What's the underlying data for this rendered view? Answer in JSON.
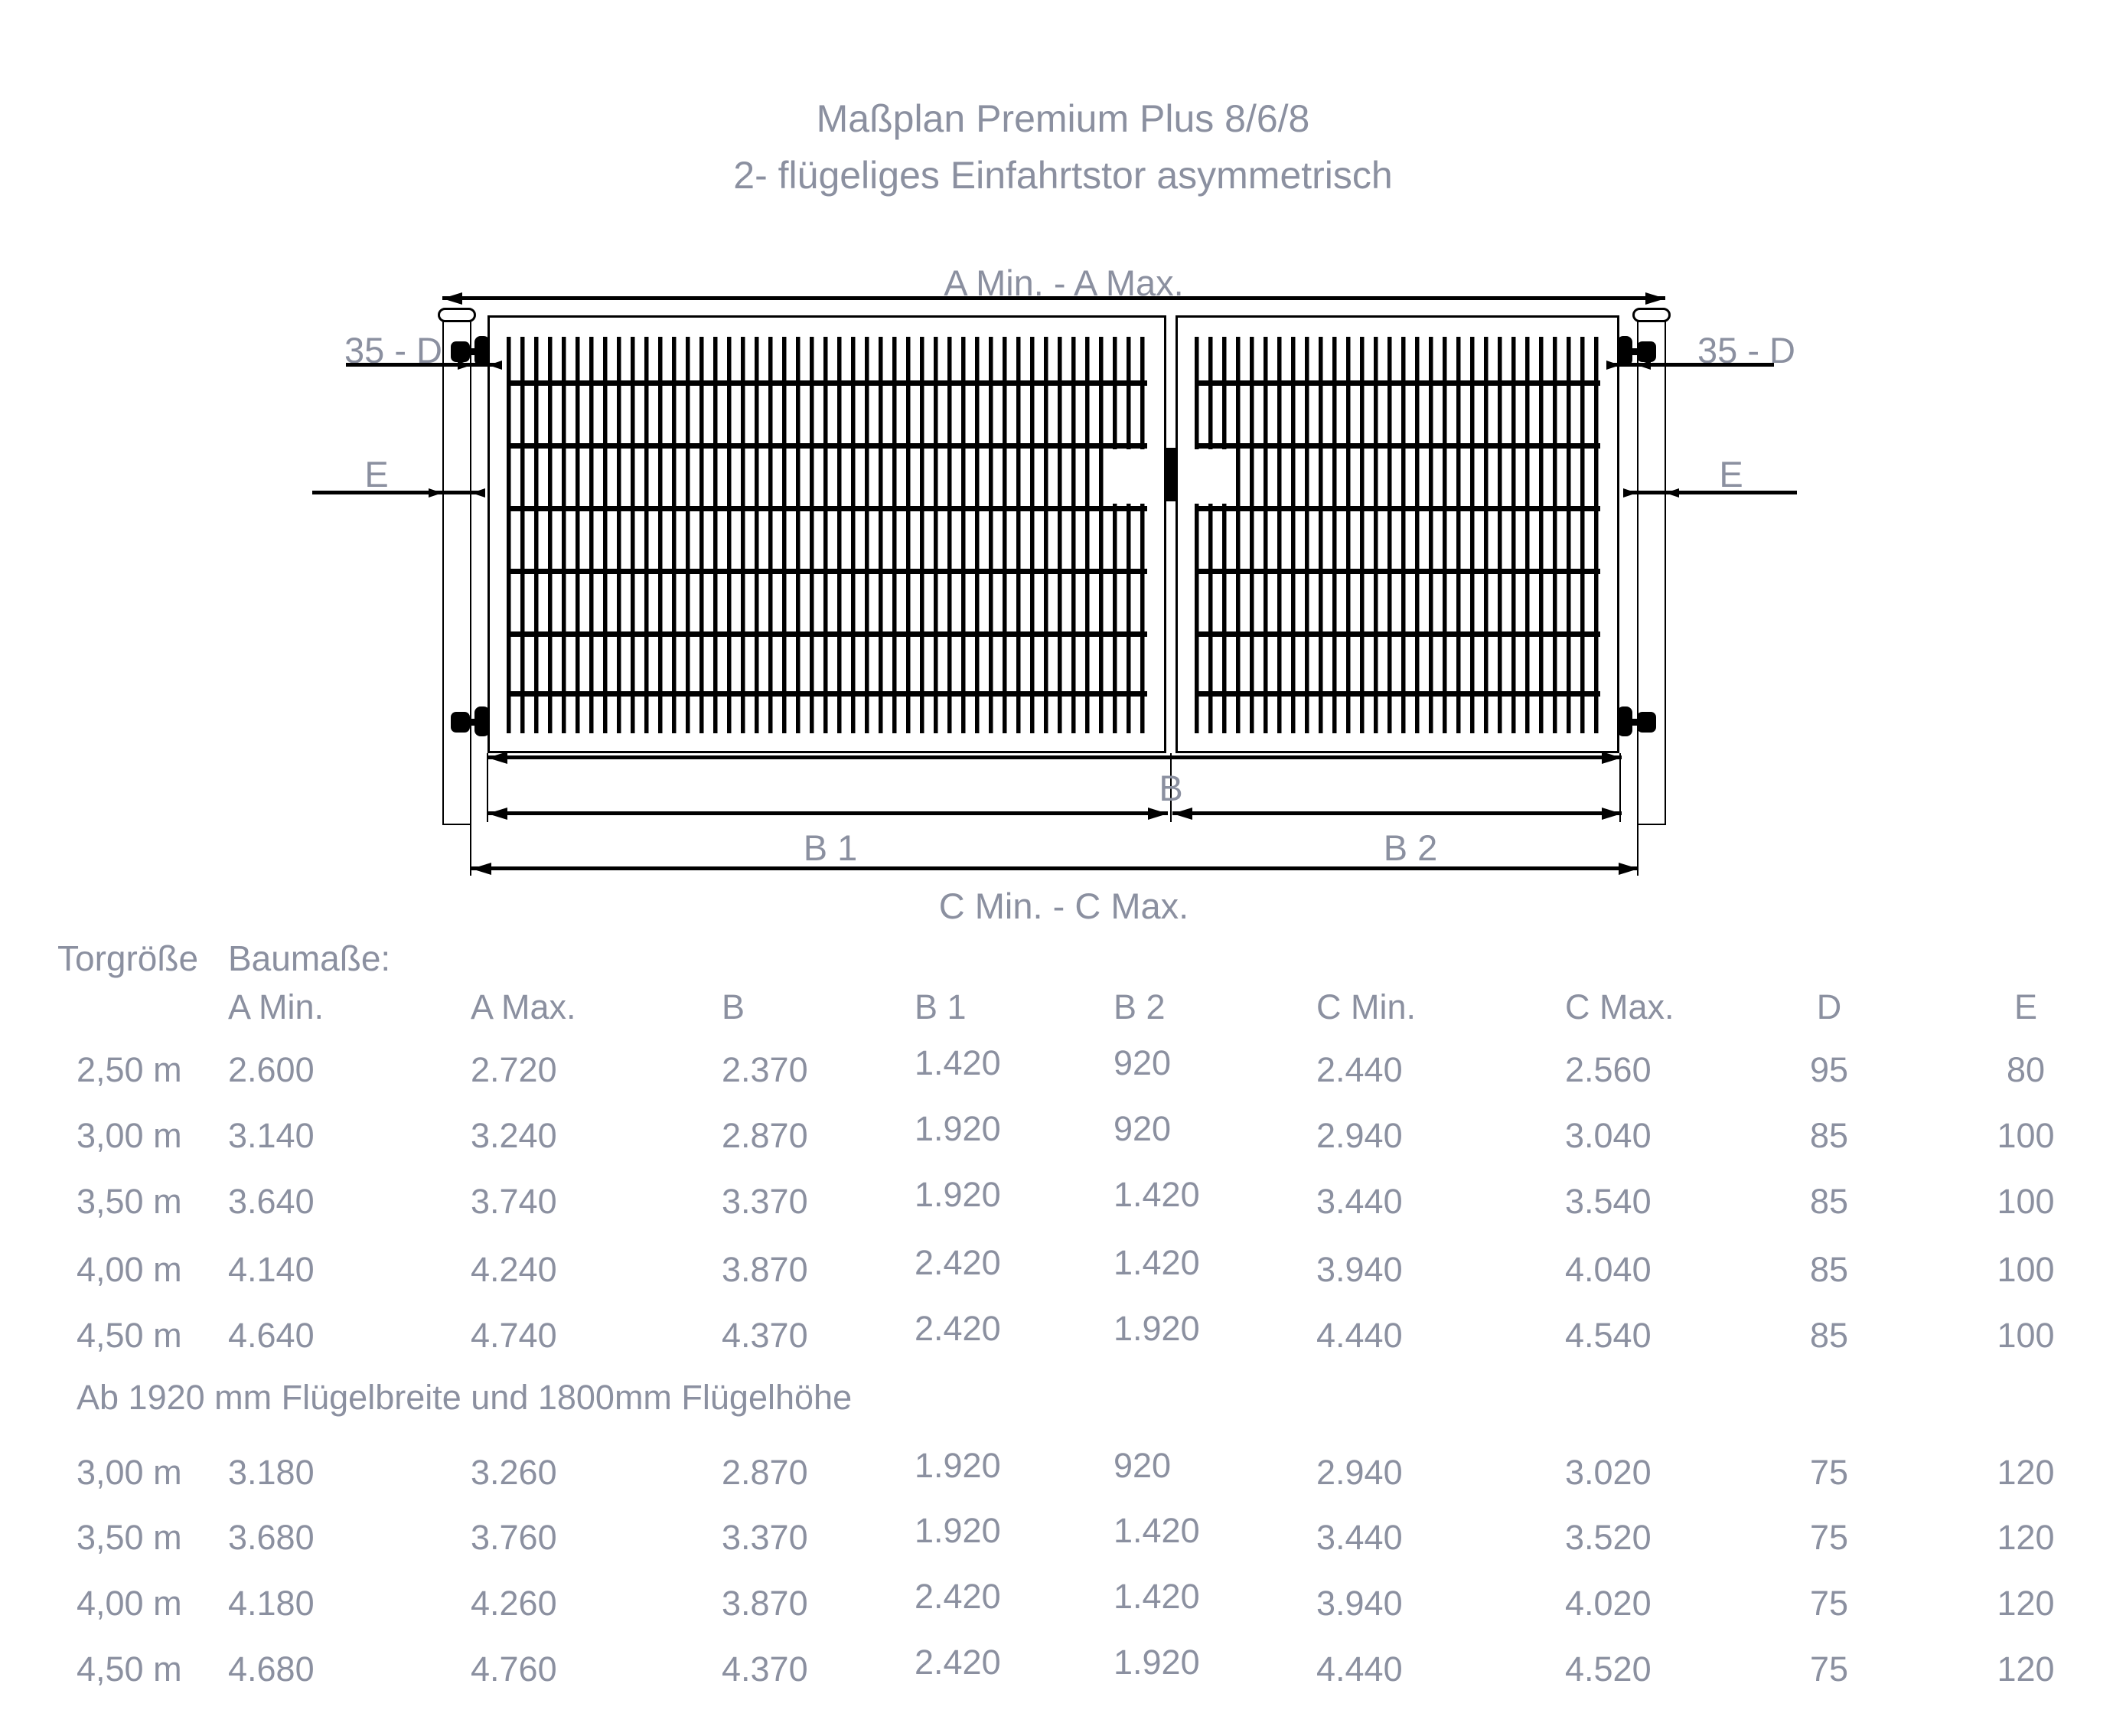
{
  "title": {
    "line1": "Maßplan Premium Plus 8/6/8",
    "line2": "2- flügeliges Einfahrtstor asymmetrisch"
  },
  "diagram": {
    "labels": {
      "a": "A Min. - A Max.",
      "d_left": "35 - D",
      "d_right": "35 - D",
      "e_left": "E",
      "e_right": "E",
      "b": "B",
      "b1": "B 1",
      "b2": "B 2",
      "c": "C Min. - C Max."
    }
  },
  "table": {
    "group_header": {
      "left": "Torgröße",
      "right": "Baumaße:"
    },
    "columns": [
      "A Min.",
      "A Max.",
      "B",
      "B 1",
      "B 2",
      "C Min.",
      "C Max.",
      "D",
      "E"
    ],
    "section1_rows": [
      {
        "size": "2,50 m",
        "values": [
          "2.600",
          "2.720",
          "2.370",
          "1.420",
          "920",
          "2.440",
          "2.560",
          "95",
          "80"
        ]
      },
      {
        "size": "3,00 m",
        "values": [
          "3.140",
          "3.240",
          "2.870",
          "1.920",
          "920",
          "2.940",
          "3.040",
          "85",
          "100"
        ]
      },
      {
        "size": "3,50 m",
        "values": [
          "3.640",
          "3.740",
          "3.370",
          "1.920",
          "1.420",
          "3.440",
          "3.540",
          "85",
          "100"
        ]
      },
      {
        "size": "4,00 m",
        "values": [
          "4.140",
          "4.240",
          "3.870",
          "2.420",
          "1.420",
          "3.940",
          "4.040",
          "85",
          "100"
        ]
      },
      {
        "size": "4,50 m",
        "values": [
          "4.640",
          "4.740",
          "4.370",
          "2.420",
          "1.920",
          "4.440",
          "4.540",
          "85",
          "100"
        ]
      }
    ],
    "note": "Ab 1920 mm Flügelbreite und 1800mm Flügelhöhe",
    "section2_rows": [
      {
        "size": "3,00 m",
        "values": [
          "3.180",
          "3.260",
          "2.870",
          "1.920",
          "920",
          "2.940",
          "3.020",
          "75",
          "120"
        ]
      },
      {
        "size": "3,50 m",
        "values": [
          "3.680",
          "3.760",
          "3.370",
          "1.920",
          "1.420",
          "3.440",
          "3.520",
          "75",
          "120"
        ]
      },
      {
        "size": "4,00 m",
        "values": [
          "4.180",
          "4.260",
          "3.870",
          "2.420",
          "1.420",
          "3.940",
          "4.020",
          "75",
          "120"
        ]
      },
      {
        "size": "4,50 m",
        "values": [
          "4.680",
          "4.760",
          "4.370",
          "2.420",
          "1.920",
          "4.440",
          "4.520",
          "75",
          "120"
        ]
      }
    ]
  },
  "colors": {
    "text": "#8b90a0",
    "line": "#000000",
    "background": "#ffffff"
  }
}
